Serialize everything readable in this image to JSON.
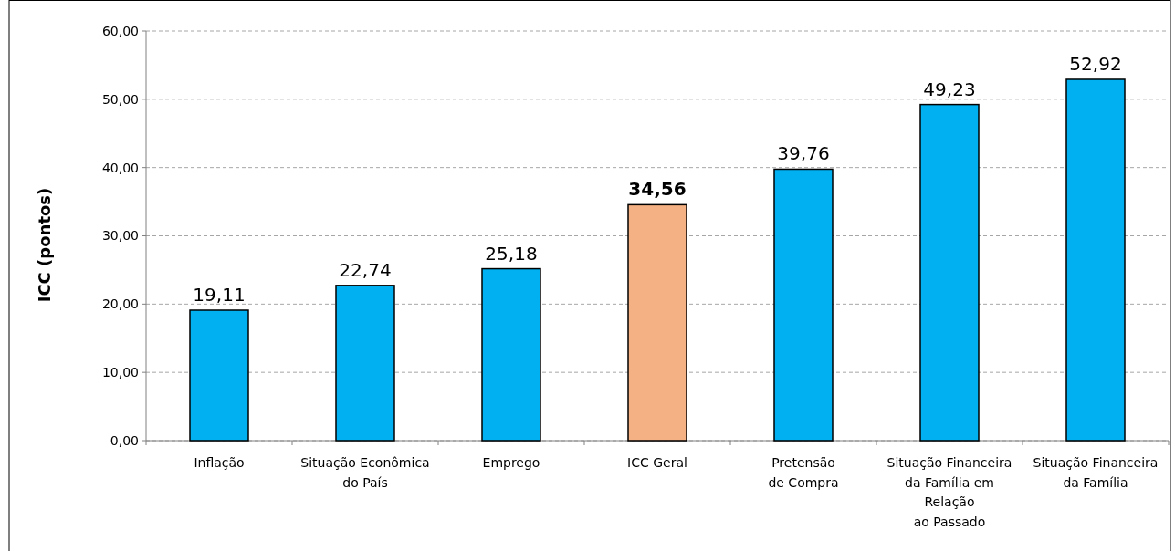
{
  "chart_data": {
    "type": "bar",
    "ylabel": "ICC (pontos)",
    "categories": [
      "Inflação",
      "Situação Econômica\ndo País",
      "Emprego",
      "ICC Geral",
      "Pretensão\nde Compra",
      "Situação Financeira\nda Família em\nRelação\nao Passado",
      "Situação Financeira\nda Família"
    ],
    "values": [
      19.11,
      22.74,
      25.18,
      34.56,
      39.76,
      49.23,
      52.92
    ],
    "value_labels": [
      "19,11",
      "22,74",
      "25,18",
      "34,56",
      "39,76",
      "49,23",
      "52,92"
    ],
    "colors": [
      "#00b0f0",
      "#00b0f0",
      "#00b0f0",
      "#f4b183",
      "#00b0f0",
      "#00b0f0",
      "#00b0f0"
    ],
    "ylim": [
      0,
      60
    ],
    "yticks": [
      {
        "value": 0,
        "label": "0,00"
      },
      {
        "value": 10,
        "label": "10,00"
      },
      {
        "value": 20,
        "label": "20,00"
      },
      {
        "value": 30,
        "label": "30,00"
      },
      {
        "value": 40,
        "label": "40,00"
      },
      {
        "value": 50,
        "label": "50,00"
      },
      {
        "value": 60,
        "label": "60,00"
      }
    ],
    "grid": "y"
  }
}
